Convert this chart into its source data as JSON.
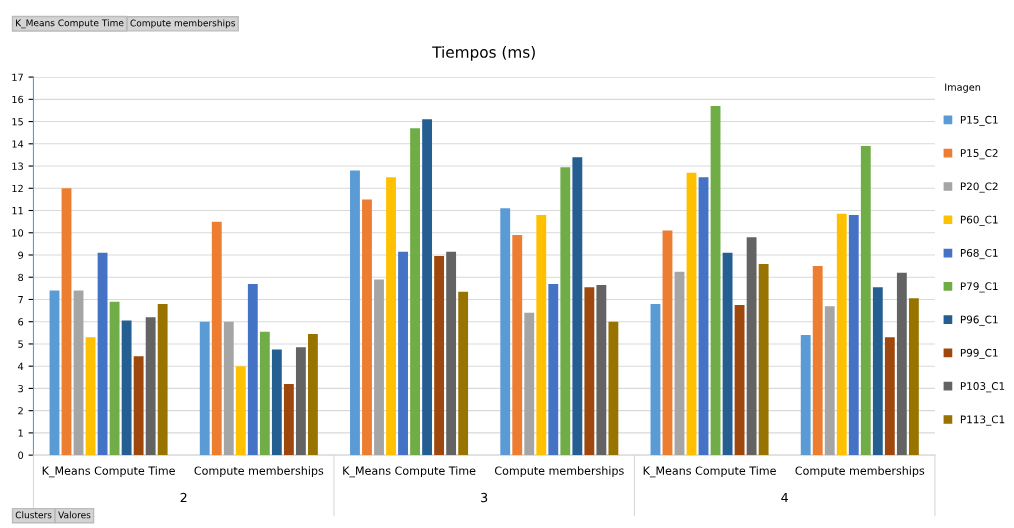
{
  "chart_data": {
    "type": "bar",
    "title": "Tiempos (ms)",
    "legend_title": "Imagen",
    "categories": [
      "K_Means Compute Time",
      "Compute memberships",
      "K_Means Compute Time",
      "Compute memberships",
      "K_Means Compute Time",
      "Compute memberships"
    ],
    "annotations": [
      "2",
      "3",
      "4",
      "K_Means Compute Time",
      "Compute memberships",
      "Clusters",
      "Valores"
    ],
    "ylim": [
      0,
      17
    ],
    "yticks": [
      0,
      1,
      2,
      3,
      4,
      5,
      6,
      7,
      8,
      9,
      10,
      11,
      12,
      13,
      14,
      15,
      16,
      17
    ],
    "grid": "y",
    "legend": "right",
    "series": [
      {
        "name": "P15_C1",
        "color": "#5b9bd5",
        "values": [
          7.4,
          6.0,
          12.8,
          11.1,
          6.8,
          5.4
        ]
      },
      {
        "name": "P15_C2",
        "color": "#ed7d31",
        "values": [
          12.0,
          10.5,
          11.5,
          9.9,
          10.1,
          8.5
        ]
      },
      {
        "name": "P20_C2",
        "color": "#a5a5a5",
        "values": [
          7.4,
          6.0,
          7.9,
          6.4,
          8.25,
          6.7
        ]
      },
      {
        "name": "P60_C1",
        "color": "#ffc000",
        "values": [
          5.3,
          4.0,
          12.5,
          10.8,
          12.7,
          10.85
        ]
      },
      {
        "name": "P68_C1",
        "color": "#4472c4",
        "values": [
          9.1,
          7.7,
          9.15,
          7.7,
          12.5,
          10.8
        ]
      },
      {
        "name": "P79_C1",
        "color": "#70ad47",
        "values": [
          6.9,
          5.55,
          14.7,
          12.95,
          15.7,
          13.9
        ]
      },
      {
        "name": "P96_C1",
        "color": "#255e91",
        "values": [
          6.05,
          4.75,
          15.1,
          13.4,
          9.1,
          7.55
        ]
      },
      {
        "name": "P99_C1",
        "color": "#9e480e",
        "values": [
          4.45,
          3.2,
          8.95,
          7.55,
          6.75,
          5.3
        ]
      },
      {
        "name": "P103_C1",
        "color": "#636363",
        "values": [
          6.2,
          4.85,
          9.15,
          7.65,
          9.8,
          8.2
        ]
      },
      {
        "name": "P113_C1",
        "color": "#997300",
        "values": [
          6.8,
          5.45,
          7.35,
          6.0,
          8.6,
          7.05
        ]
      }
    ]
  }
}
